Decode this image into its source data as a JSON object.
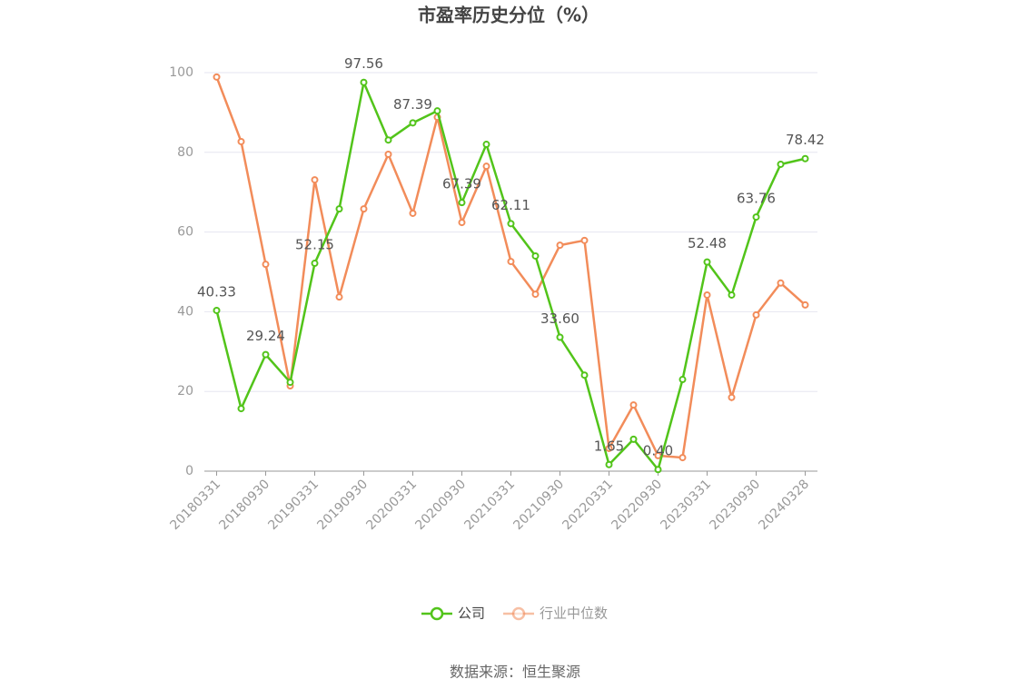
{
  "chart_data": {
    "type": "line",
    "title": "市盈率历史分位（%）",
    "source": "数据来源：恒生聚源",
    "categories": [
      "20180331",
      null,
      "20180930",
      null,
      "20190331",
      null,
      "20190930",
      null,
      "20200331",
      null,
      "20200930",
      null,
      "20210331",
      null,
      "20210930",
      null,
      "20220331",
      null,
      "20220930",
      null,
      "20230331",
      null,
      "20230930",
      null,
      "20240328"
    ],
    "series": [
      {
        "name": "公司",
        "color": "#52c41a",
        "values": [
          40.33,
          15.7,
          29.24,
          22.3,
          52.15,
          65.8,
          97.56,
          83.1,
          87.39,
          90.4,
          67.39,
          82.0,
          62.11,
          54.0,
          33.6,
          24.1,
          1.65,
          8.0,
          0.4,
          23.0,
          52.48,
          44.2,
          63.76,
          77.0,
          78.42
        ],
        "value_labels": [
          "40.33",
          null,
          "29.24",
          null,
          "52.15",
          null,
          "97.56",
          null,
          "87.39",
          null,
          "67.39",
          null,
          "62.11",
          null,
          "33.60",
          null,
          "1.65",
          null,
          "0.40",
          null,
          "52.48",
          null,
          "63.76",
          null,
          "78.42"
        ]
      },
      {
        "name": "行业中位数",
        "color": "#f28c5a",
        "values": [
          98.9,
          82.7,
          51.9,
          21.4,
          73.1,
          43.7,
          65.8,
          79.5,
          64.7,
          88.8,
          62.4,
          76.5,
          52.6,
          44.4,
          56.7,
          57.9,
          5.7,
          16.6,
          3.9,
          3.4,
          44.2,
          18.5,
          39.2,
          47.2,
          41.7
        ]
      }
    ],
    "ylim": [
      0,
      100
    ],
    "yticks": [
      0,
      20,
      40,
      60,
      80,
      100
    ],
    "grid": true
  }
}
